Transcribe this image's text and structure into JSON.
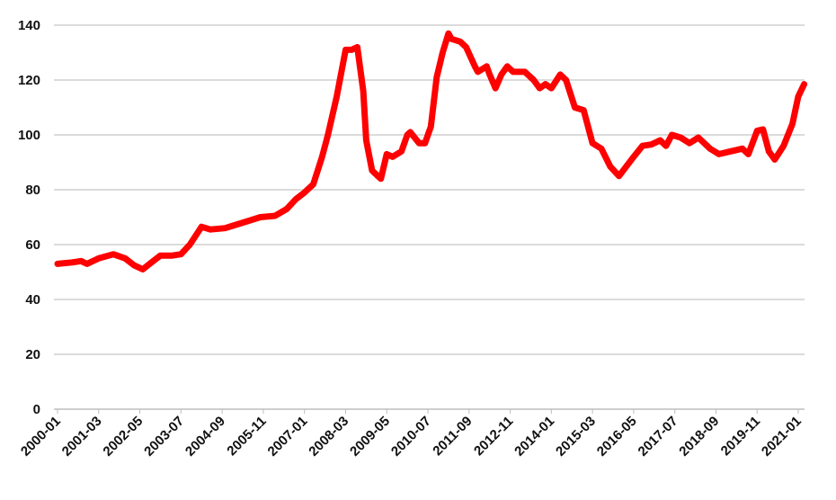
{
  "chart_data": {
    "type": "line",
    "title": "",
    "xlabel": "",
    "ylabel": "",
    "ylim": [
      0,
      140
    ],
    "yticks": [
      0,
      20,
      40,
      60,
      80,
      100,
      120,
      140
    ],
    "xticks": [
      "2000-01",
      "2001-03",
      "2002-05",
      "2003-07",
      "2004-09",
      "2005-11",
      "2007-01",
      "2008-03",
      "2009-05",
      "2010-07",
      "2011-09",
      "2012-11",
      "2014-01",
      "2015-03",
      "2016-05",
      "2017-07",
      "2018-09",
      "2019-11",
      "2021-01"
    ],
    "grid": true,
    "legend": "none",
    "series": [
      {
        "color": "#ff0000",
        "points": [
          [
            "2000-01",
            53
          ],
          [
            "2000-06",
            53.5
          ],
          [
            "2000-09",
            54
          ],
          [
            "2000-11",
            53
          ],
          [
            "2001-03",
            55
          ],
          [
            "2001-08",
            56.5
          ],
          [
            "2001-12",
            55
          ],
          [
            "2002-03",
            52.5
          ],
          [
            "2002-06",
            51
          ],
          [
            "2002-09",
            53.5
          ],
          [
            "2002-12",
            56
          ],
          [
            "2003-04",
            56
          ],
          [
            "2003-07",
            56.5
          ],
          [
            "2003-10",
            60
          ],
          [
            "2004-02",
            66.5
          ],
          [
            "2004-05",
            65.5
          ],
          [
            "2004-10",
            66
          ],
          [
            "2005-04",
            68
          ],
          [
            "2005-10",
            70
          ],
          [
            "2006-03",
            70.5
          ],
          [
            "2006-07",
            73
          ],
          [
            "2006-10",
            76.5
          ],
          [
            "2007-01",
            79
          ],
          [
            "2007-04",
            82
          ],
          [
            "2007-07",
            92
          ],
          [
            "2007-09",
            100
          ],
          [
            "2007-12",
            114
          ],
          [
            "2008-03",
            131
          ],
          [
            "2008-05",
            131
          ],
          [
            "2008-07",
            132
          ],
          [
            "2008-09",
            116
          ],
          [
            "2008-10",
            98
          ],
          [
            "2008-12",
            87
          ],
          [
            "2009-02",
            85
          ],
          [
            "2009-03",
            84
          ],
          [
            "2009-05",
            93
          ],
          [
            "2009-07",
            92
          ],
          [
            "2009-10",
            94
          ],
          [
            "2009-12",
            100
          ],
          [
            "2010-01",
            101
          ],
          [
            "2010-04",
            97
          ],
          [
            "2010-06",
            97
          ],
          [
            "2010-08",
            103
          ],
          [
            "2010-10",
            121
          ],
          [
            "2010-12",
            130
          ],
          [
            "2011-02",
            137
          ],
          [
            "2011-03",
            135
          ],
          [
            "2011-06",
            134
          ],
          [
            "2011-08",
            132
          ],
          [
            "2011-11",
            125
          ],
          [
            "2011-12",
            123
          ],
          [
            "2012-03",
            125
          ],
          [
            "2012-04",
            122
          ],
          [
            "2012-06",
            117
          ],
          [
            "2012-08",
            122
          ],
          [
            "2012-10",
            125
          ],
          [
            "2012-12",
            123
          ],
          [
            "2013-04",
            123
          ],
          [
            "2013-07",
            120
          ],
          [
            "2013-09",
            117
          ],
          [
            "2013-11",
            118.5
          ],
          [
            "2014-01",
            117
          ],
          [
            "2014-04",
            122
          ],
          [
            "2014-06",
            120
          ],
          [
            "2014-09",
            110
          ],
          [
            "2014-12",
            109
          ],
          [
            "2015-03",
            97
          ],
          [
            "2015-06",
            95
          ],
          [
            "2015-09",
            88.5
          ],
          [
            "2015-12",
            85
          ],
          [
            "2016-05",
            92
          ],
          [
            "2016-08",
            96
          ],
          [
            "2016-11",
            96.5
          ],
          [
            "2017-02",
            98
          ],
          [
            "2017-04",
            96
          ],
          [
            "2017-06",
            100
          ],
          [
            "2017-09",
            99
          ],
          [
            "2017-12",
            97
          ],
          [
            "2018-03",
            99
          ],
          [
            "2018-07",
            95
          ],
          [
            "2018-10",
            93
          ],
          [
            "2019-02",
            94
          ],
          [
            "2019-06",
            95
          ],
          [
            "2019-08",
            93
          ],
          [
            "2019-11",
            101.5
          ],
          [
            "2020-01",
            102
          ],
          [
            "2020-03",
            94
          ],
          [
            "2020-05",
            91
          ],
          [
            "2020-08",
            96
          ],
          [
            "2020-11",
            104
          ],
          [
            "2021-01",
            114
          ],
          [
            "2021-03",
            118.5
          ]
        ]
      }
    ]
  }
}
